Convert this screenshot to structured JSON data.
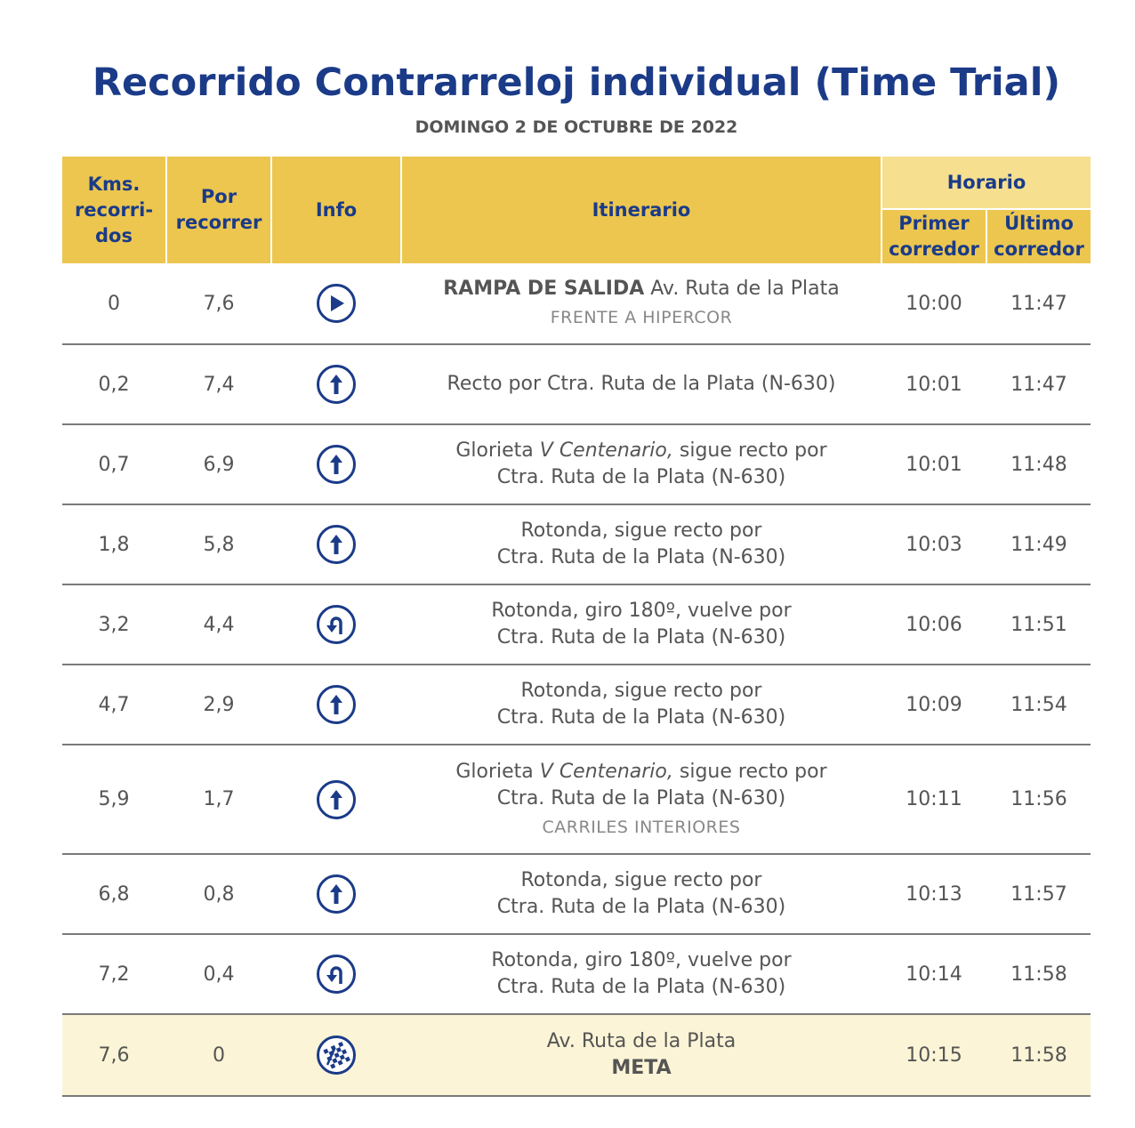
{
  "header": {
    "title": "Recorrido Contrarreloj individual (Time Trial)",
    "subtitle": "DOMINGO 2 DE OCTUBRE DE 2022"
  },
  "columns": {
    "kms": [
      "Kms.",
      "recorri-",
      "dos"
    ],
    "por": [
      "Por",
      "recorrer"
    ],
    "info": "Info",
    "itinerario": "Itinerario",
    "horario": "Horario",
    "primer": [
      "Primer",
      "corredor"
    ],
    "ultimo": [
      "Último",
      "corredor"
    ]
  },
  "rows": [
    {
      "kms": "0",
      "por": "7,6",
      "icon": "play-icon",
      "lines": [
        {
          "b": "RAMPA DE SALIDA",
          "t": " Av. Ruta de la Plata"
        }
      ],
      "note": "FRENTE A HIPERCOR",
      "primer": "10:00",
      "ultimo": "11:47"
    },
    {
      "kms": "0,2",
      "por": "7,4",
      "icon": "straight-arrow-icon",
      "lines": [
        {
          "t": "Recto por Ctra. Ruta de la Plata (N-630)"
        }
      ],
      "primer": "10:01",
      "ultimo": "11:47"
    },
    {
      "kms": "0,7",
      "por": "6,9",
      "icon": "straight-arrow-icon",
      "lines": [
        {
          "t": "Glorieta ",
          "i": "V Centenario,",
          "t2": " sigue recto por"
        },
        {
          "t": "Ctra. Ruta de la Plata (N-630)"
        }
      ],
      "primer": "10:01",
      "ultimo": "11:48"
    },
    {
      "kms": "1,8",
      "por": "5,8",
      "icon": "straight-arrow-icon",
      "lines": [
        {
          "t": "Rotonda, sigue recto por"
        },
        {
          "t": "Ctra. Ruta de la Plata (N-630)"
        }
      ],
      "primer": "10:03",
      "ultimo": "11:49"
    },
    {
      "kms": "3,2",
      "por": "4,4",
      "icon": "u-turn-icon",
      "lines": [
        {
          "t": "Rotonda, giro 180º, vuelve por"
        },
        {
          "t": "Ctra. Ruta de la Plata (N-630)"
        }
      ],
      "primer": "10:06",
      "ultimo": "11:51"
    },
    {
      "kms": "4,7",
      "por": "2,9",
      "icon": "straight-arrow-icon",
      "lines": [
        {
          "t": "Rotonda, sigue recto por"
        },
        {
          "t": "Ctra. Ruta de la Plata (N-630)"
        }
      ],
      "primer": "10:09",
      "ultimo": "11:54"
    },
    {
      "kms": "5,9",
      "por": "1,7",
      "icon": "straight-arrow-icon",
      "lines": [
        {
          "t": "Glorieta ",
          "i": "V Centenario,",
          "t2": " sigue recto por"
        },
        {
          "t": "Ctra. Ruta de la Plata (N-630)"
        }
      ],
      "note": "CARRILES INTERIORES",
      "primer": "10:11",
      "ultimo": "11:56"
    },
    {
      "kms": "6,8",
      "por": "0,8",
      "icon": "straight-arrow-icon",
      "lines": [
        {
          "t": "Rotonda, sigue recto por"
        },
        {
          "t": "Ctra. Ruta de la Plata (N-630)"
        }
      ],
      "primer": "10:13",
      "ultimo": "11:57"
    },
    {
      "kms": "7,2",
      "por": "0,4",
      "icon": "u-turn-icon",
      "lines": [
        {
          "t": "Rotonda, giro 180º, vuelve por"
        },
        {
          "t": "Ctra. Ruta de la Plata (N-630)"
        }
      ],
      "primer": "10:14",
      "ultimo": "11:58"
    },
    {
      "kms": "7,6",
      "por": "0",
      "icon": "finish-flag-icon",
      "lines": [
        {
          "t": "Av. Ruta de la Plata"
        },
        {
          "b": "META"
        }
      ],
      "primer": "10:15",
      "ultimo": "11:58",
      "highlight": true
    }
  ],
  "colors": {
    "title": "#1b3b88",
    "header_bg": "#ecc64f",
    "horario_bg": "#f6df8f",
    "meta_bg": "#fbf4d6"
  }
}
